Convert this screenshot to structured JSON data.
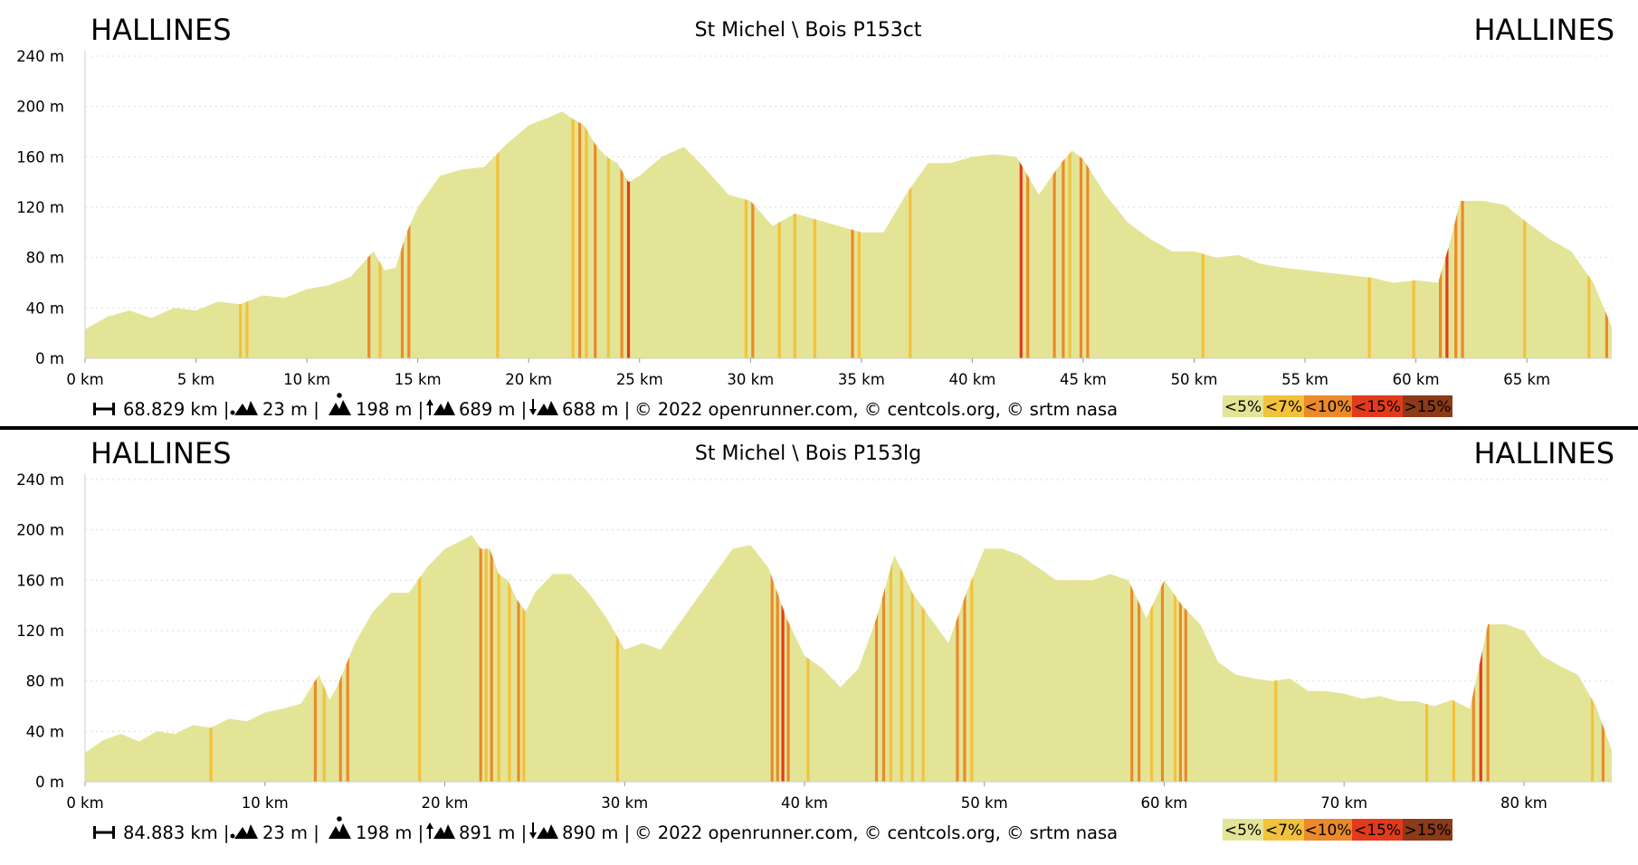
{
  "colors": {
    "profile_fill": "#e4e497",
    "grade_lt7": "#f2c23c",
    "grade_lt10": "#eb8a2a",
    "grade_lt15": "#e13b1c",
    "grade_gt15": "#8c3a18",
    "gridline": "#dcdcdc",
    "separator": "#000000"
  },
  "legend": [
    {
      "label": "<5%",
      "color": "#e4e497"
    },
    {
      "label": "<7%",
      "color": "#f2c23c"
    },
    {
      "label": "<10%",
      "color": "#eb8a2a"
    },
    {
      "label": "<15%",
      "color": "#e13b1c"
    },
    {
      "label": ">15%",
      "color": "#8c3a18"
    }
  ],
  "panels": [
    {
      "start_city": "HALLINES",
      "end_city": "HALLINES",
      "route_title": "St Michel \\ Bois P153ct",
      "stats": {
        "distance": "68.829 km |",
        "min_alt": "23 m |",
        "max_alt": "198 m |",
        "ascent": "689 m |",
        "descent": "688 m |",
        "copyright": "© 2022 openrunner.com, © centcols.org, © srtm nasa"
      },
      "chart_data": {
        "type": "area",
        "xlabel": "",
        "ylabel": "",
        "x_unit": "km",
        "y_unit": "m",
        "xlim": [
          0,
          68.829
        ],
        "ylim": [
          0,
          240
        ],
        "x_ticks": [
          "0 km",
          "5 km",
          "10 km",
          "15 km",
          "20 km",
          "25 km",
          "30 km",
          "35 km",
          "40 km",
          "45 km",
          "50 km",
          "55 km",
          "60 km",
          "65 km"
        ],
        "x_tick_values": [
          0,
          5,
          10,
          15,
          20,
          25,
          30,
          35,
          40,
          45,
          50,
          55,
          60,
          65
        ],
        "y_ticks": [
          "0 m",
          "40 m",
          "80 m",
          "120 m",
          "160 m",
          "200 m",
          "240 m"
        ],
        "y_tick_values": [
          0,
          40,
          80,
          120,
          160,
          200,
          240
        ],
        "grid": true,
        "profile": [
          [
            0,
            23
          ],
          [
            1,
            33
          ],
          [
            2,
            38
          ],
          [
            3,
            32
          ],
          [
            4,
            40
          ],
          [
            5,
            38
          ],
          [
            6,
            45
          ],
          [
            7,
            43
          ],
          [
            8,
            50
          ],
          [
            9,
            48
          ],
          [
            10,
            55
          ],
          [
            11,
            58
          ],
          [
            12,
            65
          ],
          [
            13,
            85
          ],
          [
            13.5,
            70
          ],
          [
            14,
            72
          ],
          [
            14.5,
            100
          ],
          [
            15,
            120
          ],
          [
            16,
            145
          ],
          [
            17,
            150
          ],
          [
            18,
            152
          ],
          [
            19,
            170
          ],
          [
            20,
            185
          ],
          [
            21,
            192
          ],
          [
            21.5,
            196
          ],
          [
            22,
            190
          ],
          [
            22.5,
            185
          ],
          [
            23,
            170
          ],
          [
            23.5,
            160
          ],
          [
            24,
            155
          ],
          [
            24.5,
            140
          ],
          [
            25,
            145
          ],
          [
            26,
            160
          ],
          [
            27,
            168
          ],
          [
            28,
            150
          ],
          [
            29,
            130
          ],
          [
            30,
            125
          ],
          [
            31,
            105
          ],
          [
            32,
            115
          ],
          [
            33,
            110
          ],
          [
            34,
            105
          ],
          [
            35,
            100
          ],
          [
            36,
            100
          ],
          [
            37,
            130
          ],
          [
            38,
            155
          ],
          [
            39,
            155
          ],
          [
            40,
            160
          ],
          [
            41,
            162
          ],
          [
            42,
            160
          ],
          [
            43,
            130
          ],
          [
            44,
            155
          ],
          [
            44.5,
            165
          ],
          [
            45,
            158
          ],
          [
            46,
            130
          ],
          [
            47,
            108
          ],
          [
            48,
            95
          ],
          [
            49,
            85
          ],
          [
            50,
            85
          ],
          [
            51,
            80
          ],
          [
            52,
            82
          ],
          [
            53,
            75
          ],
          [
            54,
            72
          ],
          [
            55,
            70
          ],
          [
            56,
            68
          ],
          [
            57,
            66
          ],
          [
            58,
            64
          ],
          [
            59,
            60
          ],
          [
            60,
            62
          ],
          [
            61,
            60
          ],
          [
            61.5,
            90
          ],
          [
            62,
            125
          ],
          [
            63,
            125
          ],
          [
            64,
            122
          ],
          [
            65,
            108
          ],
          [
            66,
            95
          ],
          [
            67,
            85
          ],
          [
            68,
            60
          ],
          [
            68.829,
            25
          ]
        ],
        "steep_segments": [
          {
            "x": 7.0,
            "grade": "<7%"
          },
          {
            "x": 7.3,
            "grade": "<7%"
          },
          {
            "x": 12.8,
            "grade": "<10%"
          },
          {
            "x": 13.3,
            "grade": "<7%"
          },
          {
            "x": 14.3,
            "grade": "<10%"
          },
          {
            "x": 14.6,
            "grade": "<10%"
          },
          {
            "x": 18.6,
            "grade": "<7%"
          },
          {
            "x": 22.0,
            "grade": "<7%"
          },
          {
            "x": 22.3,
            "grade": "<10%"
          },
          {
            "x": 22.6,
            "grade": "<7%"
          },
          {
            "x": 23.0,
            "grade": "<10%"
          },
          {
            "x": 23.6,
            "grade": "<7%"
          },
          {
            "x": 24.2,
            "grade": "<10%"
          },
          {
            "x": 24.5,
            "grade": "<15%"
          },
          {
            "x": 29.8,
            "grade": "<7%"
          },
          {
            "x": 30.1,
            "grade": "<10%"
          },
          {
            "x": 31.3,
            "grade": "<7%"
          },
          {
            "x": 32.0,
            "grade": "<7%"
          },
          {
            "x": 32.9,
            "grade": "<7%"
          },
          {
            "x": 34.6,
            "grade": "<10%"
          },
          {
            "x": 34.9,
            "grade": "<7%"
          },
          {
            "x": 37.2,
            "grade": "<7%"
          },
          {
            "x": 42.2,
            "grade": "<15%"
          },
          {
            "x": 42.5,
            "grade": "<10%"
          },
          {
            "x": 43.7,
            "grade": "<10%"
          },
          {
            "x": 44.1,
            "grade": "<10%"
          },
          {
            "x": 44.4,
            "grade": "<7%"
          },
          {
            "x": 44.9,
            "grade": "<10%"
          },
          {
            "x": 45.2,
            "grade": "<10%"
          },
          {
            "x": 50.4,
            "grade": "<7%"
          },
          {
            "x": 57.9,
            "grade": "<7%"
          },
          {
            "x": 59.9,
            "grade": "<7%"
          },
          {
            "x": 61.1,
            "grade": "<10%"
          },
          {
            "x": 61.4,
            "grade": "<15%"
          },
          {
            "x": 61.8,
            "grade": "<10%"
          },
          {
            "x": 62.1,
            "grade": "<10%"
          },
          {
            "x": 64.9,
            "grade": "<7%"
          },
          {
            "x": 67.8,
            "grade": "<7%"
          },
          {
            "x": 68.6,
            "grade": "<10%"
          }
        ]
      }
    },
    {
      "start_city": "HALLINES",
      "end_city": "HALLINES",
      "route_title": "St Michel \\ Bois P153lg",
      "stats": {
        "distance": "84.883 km |",
        "min_alt": "23 m |",
        "max_alt": "198 m |",
        "ascent": "891 m |",
        "descent": "890 m |",
        "copyright": "© 2022 openrunner.com, © centcols.org, © srtm nasa"
      },
      "chart_data": {
        "type": "area",
        "xlabel": "",
        "ylabel": "",
        "x_unit": "km",
        "y_unit": "m",
        "xlim": [
          0,
          84.883
        ],
        "ylim": [
          0,
          240
        ],
        "x_ticks": [
          "0 km",
          "10 km",
          "20 km",
          "30 km",
          "40 km",
          "50 km",
          "60 km",
          "70 km",
          "80 km"
        ],
        "x_tick_values": [
          0,
          10,
          20,
          30,
          40,
          50,
          60,
          70,
          80
        ],
        "y_ticks": [
          "0 m",
          "40 m",
          "80 m",
          "120 m",
          "160 m",
          "200 m",
          "240 m"
        ],
        "y_tick_values": [
          0,
          40,
          80,
          120,
          160,
          200,
          240
        ],
        "grid": true,
        "profile": [
          [
            0,
            23
          ],
          [
            1,
            33
          ],
          [
            2,
            38
          ],
          [
            3,
            32
          ],
          [
            4,
            40
          ],
          [
            5,
            38
          ],
          [
            6,
            45
          ],
          [
            7,
            43
          ],
          [
            8,
            50
          ],
          [
            9,
            48
          ],
          [
            10,
            55
          ],
          [
            11,
            58
          ],
          [
            12,
            62
          ],
          [
            13,
            85
          ],
          [
            13.6,
            65
          ],
          [
            14,
            75
          ],
          [
            15,
            110
          ],
          [
            16,
            135
          ],
          [
            17,
            150
          ],
          [
            18,
            150
          ],
          [
            19,
            170
          ],
          [
            20,
            185
          ],
          [
            21,
            192
          ],
          [
            21.5,
            196
          ],
          [
            22,
            185
          ],
          [
            22.5,
            185
          ],
          [
            23,
            165
          ],
          [
            23.5,
            160
          ],
          [
            24,
            145
          ],
          [
            24.5,
            135
          ],
          [
            25,
            150
          ],
          [
            26,
            165
          ],
          [
            27,
            165
          ],
          [
            28,
            150
          ],
          [
            29,
            130
          ],
          [
            30,
            105
          ],
          [
            31,
            110
          ],
          [
            32,
            105
          ],
          [
            33,
            125
          ],
          [
            34,
            145
          ],
          [
            35,
            165
          ],
          [
            36,
            185
          ],
          [
            37,
            188
          ],
          [
            38,
            170
          ],
          [
            39,
            130
          ],
          [
            40,
            100
          ],
          [
            41,
            90
          ],
          [
            42,
            75
          ],
          [
            43,
            90
          ],
          [
            44,
            130
          ],
          [
            45,
            180
          ],
          [
            46,
            150
          ],
          [
            47,
            130
          ],
          [
            48,
            110
          ],
          [
            49,
            150
          ],
          [
            50,
            185
          ],
          [
            51,
            185
          ],
          [
            52,
            180
          ],
          [
            53,
            170
          ],
          [
            54,
            160
          ],
          [
            55,
            160
          ],
          [
            56,
            160
          ],
          [
            57,
            165
          ],
          [
            58,
            160
          ],
          [
            59,
            130
          ],
          [
            60,
            160
          ],
          [
            61,
            140
          ],
          [
            62,
            125
          ],
          [
            63,
            95
          ],
          [
            64,
            85
          ],
          [
            65,
            82
          ],
          [
            66,
            80
          ],
          [
            67,
            82
          ],
          [
            68,
            72
          ],
          [
            69,
            72
          ],
          [
            70,
            70
          ],
          [
            71,
            66
          ],
          [
            72,
            68
          ],
          [
            73,
            64
          ],
          [
            74,
            64
          ],
          [
            75,
            60
          ],
          [
            76,
            65
          ],
          [
            77,
            58
          ],
          [
            78,
            125
          ],
          [
            79,
            125
          ],
          [
            80,
            120
          ],
          [
            81,
            100
          ],
          [
            82,
            92
          ],
          [
            83,
            85
          ],
          [
            84,
            60
          ],
          [
            84.883,
            25
          ]
        ],
        "steep_segments": [
          {
            "x": 7.0,
            "grade": "<7%"
          },
          {
            "x": 12.8,
            "grade": "<10%"
          },
          {
            "x": 13.3,
            "grade": "<7%"
          },
          {
            "x": 14.2,
            "grade": "<10%"
          },
          {
            "x": 14.6,
            "grade": "<10%"
          },
          {
            "x": 18.6,
            "grade": "<7%"
          },
          {
            "x": 22.0,
            "grade": "<10%"
          },
          {
            "x": 22.3,
            "grade": "<7%"
          },
          {
            "x": 22.6,
            "grade": "<10%"
          },
          {
            "x": 23.0,
            "grade": "<7%"
          },
          {
            "x": 23.6,
            "grade": "<7%"
          },
          {
            "x": 24.1,
            "grade": "<10%"
          },
          {
            "x": 24.4,
            "grade": "<7%"
          },
          {
            "x": 29.6,
            "grade": "<7%"
          },
          {
            "x": 38.2,
            "grade": "<10%"
          },
          {
            "x": 38.5,
            "grade": "<10%"
          },
          {
            "x": 38.8,
            "grade": "<15%"
          },
          {
            "x": 39.1,
            "grade": "<10%"
          },
          {
            "x": 40.2,
            "grade": "<7%"
          },
          {
            "x": 44.0,
            "grade": "<10%"
          },
          {
            "x": 44.4,
            "grade": "<10%"
          },
          {
            "x": 44.8,
            "grade": "<7%"
          },
          {
            "x": 45.4,
            "grade": "<7%"
          },
          {
            "x": 46.0,
            "grade": "<7%"
          },
          {
            "x": 46.6,
            "grade": "<7%"
          },
          {
            "x": 48.5,
            "grade": "<10%"
          },
          {
            "x": 48.9,
            "grade": "<10%"
          },
          {
            "x": 49.3,
            "grade": "<7%"
          },
          {
            "x": 58.2,
            "grade": "<10%"
          },
          {
            "x": 58.6,
            "grade": "<10%"
          },
          {
            "x": 59.3,
            "grade": "<7%"
          },
          {
            "x": 59.9,
            "grade": "<10%"
          },
          {
            "x": 60.6,
            "grade": "<7%"
          },
          {
            "x": 60.9,
            "grade": "<10%"
          },
          {
            "x": 61.2,
            "grade": "<10%"
          },
          {
            "x": 66.2,
            "grade": "<7%"
          },
          {
            "x": 74.6,
            "grade": "<7%"
          },
          {
            "x": 76.1,
            "grade": "<7%"
          },
          {
            "x": 77.2,
            "grade": "<10%"
          },
          {
            "x": 77.6,
            "grade": "<15%"
          },
          {
            "x": 78.0,
            "grade": "<10%"
          },
          {
            "x": 83.8,
            "grade": "<7%"
          },
          {
            "x": 84.4,
            "grade": "<10%"
          }
        ]
      }
    }
  ]
}
